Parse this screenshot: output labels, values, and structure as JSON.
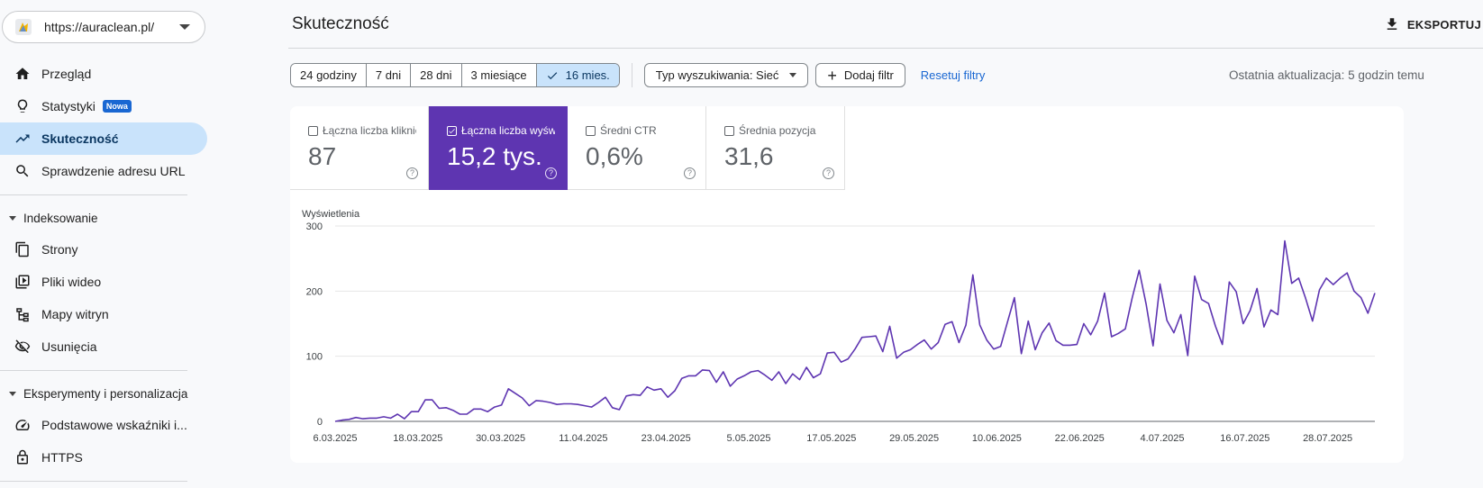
{
  "property": {
    "url": "https://auraclean.pl/"
  },
  "sidebar": {
    "items": [
      {
        "label": "Przegląd",
        "icon": "home-icon"
      },
      {
        "label": "Statystyki",
        "icon": "lightbulb-icon",
        "badge": "Nowa"
      },
      {
        "label": "Skuteczność",
        "icon": "trending-up-icon",
        "active": true
      },
      {
        "label": "Sprawdzenie adresu URL",
        "icon": "search-icon"
      }
    ],
    "section_indexing": "Indeksowanie",
    "indexing_items": [
      {
        "label": "Strony",
        "icon": "pages-icon"
      },
      {
        "label": "Pliki wideo",
        "icon": "video-icon"
      },
      {
        "label": "Mapy witryn",
        "icon": "sitemap-icon"
      },
      {
        "label": "Usunięcia",
        "icon": "visibility-off-icon"
      }
    ],
    "section_experience": "Eksperymenty i personalizacja",
    "experience_items": [
      {
        "label": "Podstawowe wskaźniki i...",
        "icon": "speed-icon"
      },
      {
        "label": "HTTPS",
        "icon": "lock-icon"
      }
    ]
  },
  "header": {
    "title": "Skuteczność",
    "export_label": "EKSPORTUJ"
  },
  "filters": {
    "ranges": [
      "24 godziny",
      "7 dni",
      "28 dni",
      "3 miesiące",
      "16 mies."
    ],
    "selected_range": "16 mies.",
    "search_type": "Typ wyszukiwania: Sieć",
    "add_filter": "Dodaj filtr",
    "reset": "Resetuj filtry",
    "last_update": "Ostatnia aktualizacja: 5 godzin temu"
  },
  "metrics": [
    {
      "label": "Łączna liczba kliknięć",
      "value": "87",
      "selected": false
    },
    {
      "label": "Łączna liczba wyświetleń",
      "value": "15,2 tys.",
      "selected": true
    },
    {
      "label": "Średni CTR",
      "value": "0,6%",
      "selected": false
    },
    {
      "label": "Średnia pozycja",
      "value": "31,6",
      "selected": false
    }
  ],
  "colors": {
    "accent": "#5e35b1",
    "selected_nav": "#c9e3fb",
    "link": "#1967d2"
  },
  "chart_data": {
    "type": "line",
    "ylabel": "Wyświetlenia",
    "ylim": [
      0,
      300
    ],
    "yticks": [
      0,
      100,
      200,
      300
    ],
    "xtick_labels": [
      "6.03.2025",
      "18.03.2025",
      "30.03.2025",
      "11.04.2025",
      "23.04.2025",
      "5.05.2025",
      "17.05.2025",
      "29.05.2025",
      "10.06.2025",
      "22.06.2025",
      "4.07.2025",
      "16.07.2025",
      "28.07.2025"
    ],
    "series": [
      {
        "values": [
          0,
          2,
          3,
          6,
          4,
          5,
          5,
          7,
          5,
          11,
          4,
          15,
          15,
          33,
          33,
          20,
          21,
          17,
          11,
          11,
          19,
          19,
          15,
          22,
          25,
          50,
          43,
          36,
          24,
          32,
          31,
          29,
          26,
          27,
          27,
          26,
          24,
          22,
          29,
          37,
          21,
          18,
          39,
          41,
          40,
          53,
          48,
          50,
          37,
          47,
          66,
          70,
          70,
          79,
          78,
          60,
          76,
          54,
          65,
          70,
          76,
          78,
          71,
          63,
          76,
          58,
          73,
          64,
          83,
          67,
          73,
          105,
          106,
          91,
          96,
          111,
          129,
          130,
          131,
          107,
          146,
          97,
          106,
          110,
          118,
          125,
          111,
          121,
          149,
          153,
          121,
          148,
          225,
          148,
          125,
          111,
          115,
          153,
          190,
          104,
          154,
          110,
          136,
          151,
          124,
          117,
          117,
          118,
          150,
          133,
          154,
          197,
          130,
          135,
          142,
          190,
          232,
          180,
          116,
          211,
          155,
          136,
          164,
          101,
          223,
          187,
          181,
          146,
          118,
          214,
          199,
          150,
          170,
          204,
          145,
          171,
          164,
          277,
          212,
          220,
          189,
          154,
          202,
          220,
          210,
          220,
          228,
          200,
          190,
          166,
          197
        ]
      }
    ]
  }
}
